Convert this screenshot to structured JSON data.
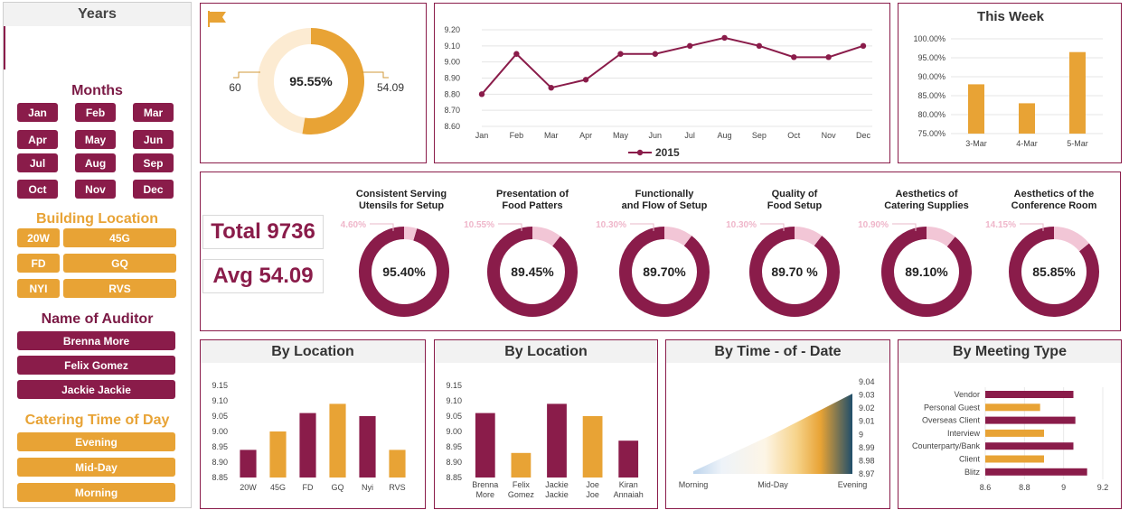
{
  "slicers": {
    "years": {
      "title": "Years"
    },
    "months": {
      "title": "Months",
      "items": [
        "Jan",
        "Feb",
        "Mar",
        "Apr",
        "May",
        "Jun",
        "Jul",
        "Aug",
        "Sep",
        "Oct",
        "Nov",
        "Dec"
      ]
    },
    "building": {
      "title": "Building Location",
      "items": [
        "20W",
        "45G",
        "FD",
        "GQ",
        "NYI",
        "RVS"
      ]
    },
    "auditor": {
      "title": "Name of Auditor",
      "items": [
        "Brenna More",
        "Felix Gomez",
        "Jackie Jackie"
      ]
    },
    "catering": {
      "title": "Catering Time of Day",
      "items": [
        "Evening",
        "Mid-Day",
        "Morning"
      ]
    }
  },
  "colors": {
    "plum": "#8a1c4a",
    "gold": "#e8a335",
    "light_gold": "#fcebd2",
    "pink": "#f2c6d6"
  },
  "kpis": {
    "total": "Total 9736",
    "avg": "Avg 54.09"
  },
  "chart_data": [
    {
      "id": "overall-donut",
      "type": "pie",
      "center_label": "95.55%",
      "left_label": "60",
      "right_label": "54.09",
      "values": [
        60,
        54.09
      ]
    },
    {
      "id": "monthly-line",
      "type": "line",
      "categories": [
        "Jan",
        "Feb",
        "Mar",
        "Apr",
        "May",
        "Jun",
        "Jul",
        "Aug",
        "Sep",
        "Oct",
        "Nov",
        "Dec"
      ],
      "series": [
        {
          "name": "2015",
          "values": [
            8.8,
            9.05,
            8.84,
            8.89,
            9.05,
            9.05,
            9.1,
            9.15,
            9.1,
            9.03,
            9.03,
            9.1
          ]
        }
      ],
      "ylim": [
        8.6,
        9.2
      ],
      "yticks": [
        "8.60",
        "8.70",
        "8.80",
        "8.90",
        "9.00",
        "9.10",
        "9.20"
      ],
      "legend": "bottom"
    },
    {
      "id": "this-week",
      "type": "bar",
      "title": "This Week",
      "categories": [
        "3-Mar",
        "4-Mar",
        "5-Mar"
      ],
      "values": [
        88.0,
        83.0,
        96.5
      ],
      "ylim": [
        75,
        100
      ],
      "yticks": [
        "75.00%",
        "80.00%",
        "85.00%",
        "90.00%",
        "95.00%",
        "100.00%"
      ]
    },
    {
      "id": "category-donuts",
      "type": "pie",
      "items": [
        {
          "label1": "Consistent Serving",
          "label2": "Utensils for Setup",
          "score": "95.40%",
          "gap": "4.60%",
          "gap_value": 4.6
        },
        {
          "label1": "Presentation of",
          "label2": "Food Patters",
          "score": "89.45%",
          "gap": "10.55%",
          "gap_value": 10.55
        },
        {
          "label1": "Functionally",
          "label2": "and Flow of Setup",
          "score": "89.70%",
          "gap": "10.30%",
          "gap_value": 10.3
        },
        {
          "label1": "Quality of",
          "label2": "Food Setup",
          "score": "89.70 %",
          "gap": "10.30%",
          "gap_value": 10.3
        },
        {
          "label1": "Aesthetics of",
          "label2": "Catering Supplies",
          "score": "89.10%",
          "gap": "10.90%",
          "gap_value": 10.9
        },
        {
          "label1": "Aesthetics of the",
          "label2": "Conference Room",
          "score": "85.85%",
          "gap": "14.15%",
          "gap_value": 14.15
        }
      ]
    },
    {
      "id": "by-location",
      "type": "bar",
      "title": "By Location",
      "categories": [
        "20W",
        "45G",
        "FD",
        "GQ",
        "Nyi",
        "RVS"
      ],
      "values": [
        8.94,
        9.0,
        9.06,
        9.09,
        9.05,
        8.94
      ],
      "ylim": [
        8.85,
        9.15
      ],
      "yticks": [
        "8.85",
        "8.90",
        "8.95",
        "9.00",
        "9.05",
        "9.10",
        "9.15"
      ]
    },
    {
      "id": "by-auditor",
      "type": "bar",
      "title": "By Location",
      "categories": [
        [
          "Brenna",
          "More"
        ],
        [
          "Felix",
          "Gomez"
        ],
        [
          "Jackie",
          "Jackie"
        ],
        [
          "Joe",
          "Joe"
        ],
        [
          "Kiran",
          "Annaiah"
        ]
      ],
      "values": [
        9.06,
        8.93,
        9.09,
        9.05,
        8.97
      ],
      "ylim": [
        8.85,
        9.15
      ],
      "yticks": [
        "8.85",
        "8.90",
        "8.95",
        "9.00",
        "9.05",
        "9.10",
        "9.15"
      ]
    },
    {
      "id": "by-time",
      "type": "area",
      "title": "By Time - of - Date",
      "categories": [
        "Morning",
        "Mid-Day",
        "Evening"
      ],
      "values": [
        8.972,
        9.0,
        9.031
      ],
      "ylim": [
        8.97,
        9.04
      ],
      "yticks": [
        "8.97",
        "8.98",
        "8.99",
        "9",
        "9.01",
        "9.02",
        "9.03",
        "9.04"
      ]
    },
    {
      "id": "by-meeting",
      "type": "bar",
      "title": "By Meeting Type",
      "categories": [
        "Vendor",
        "Personal Guest",
        "Overseas Client",
        "Interview",
        "Counterparty/Bank",
        "Client",
        "Blitz"
      ],
      "values": [
        9.05,
        8.88,
        9.06,
        8.9,
        9.05,
        8.9,
        9.12
      ],
      "xlim": [
        8.6,
        9.2
      ],
      "xticks": [
        "8.6",
        "8.8",
        "9",
        "9.2"
      ]
    }
  ]
}
